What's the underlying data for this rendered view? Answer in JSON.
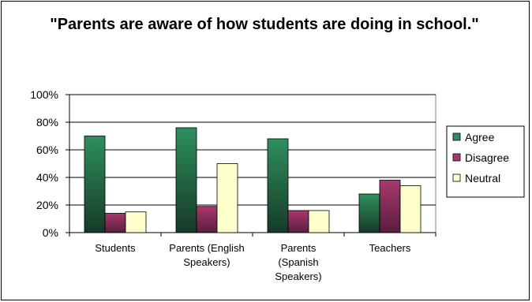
{
  "chart_data": {
    "type": "bar",
    "title": "\"Parents are aware of how students are doing in school.\"",
    "categories": [
      [
        "Students"
      ],
      [
        "Parents (English",
        "Speakers)"
      ],
      [
        "Parents",
        "(Spanish",
        "Speakers)"
      ],
      [
        "Teachers"
      ]
    ],
    "series": [
      {
        "name": "Agree",
        "values": [
          70,
          76,
          68,
          28
        ]
      },
      {
        "name": "Disagree",
        "values": [
          14,
          19,
          16,
          38
        ]
      },
      {
        "name": "Neutral",
        "values": [
          15,
          50,
          16,
          34
        ]
      }
    ],
    "ylim": [
      0,
      100
    ],
    "yticks": [
      "0%",
      "20%",
      "40%",
      "60%",
      "80%",
      "100%"
    ],
    "grid": true,
    "legend": "right",
    "colors": {
      "Agree_top": "#2e8f5e",
      "Agree_bottom": "#163a27",
      "Disagree_top": "#a8386e",
      "Disagree_bottom": "#5a1e3c",
      "Neutral": "#ffffcc",
      "plot_bg": "#ffffff",
      "grid": "#000000"
    }
  }
}
